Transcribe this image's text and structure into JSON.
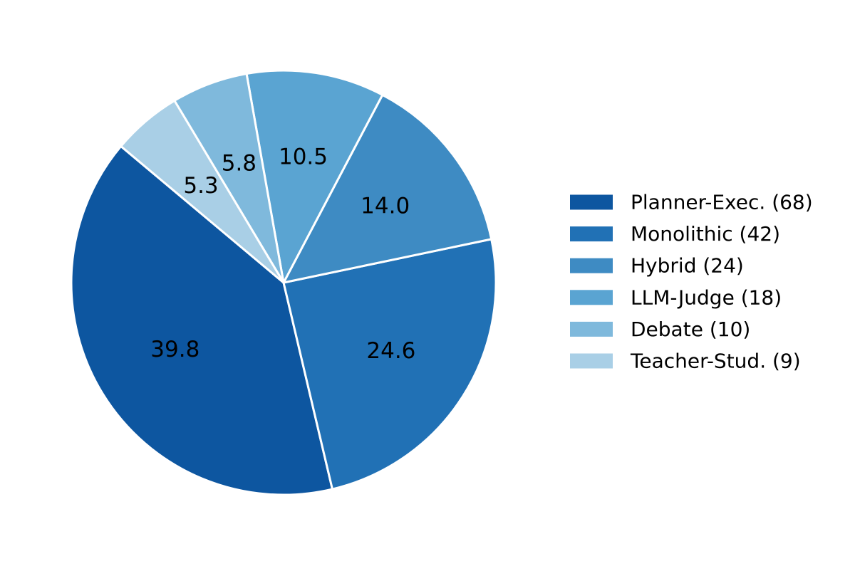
{
  "chart_data": {
    "type": "pie",
    "title": "",
    "slices": [
      {
        "legend": "Planner-Exec. (68)",
        "value": 39.8,
        "label": "39.8",
        "color": "#0d56a0"
      },
      {
        "legend": "Monolithic (42)",
        "value": 24.6,
        "label": "24.6",
        "color": "#2171b5"
      },
      {
        "legend": "Hybrid (24)",
        "value": 14.0,
        "label": "14.0",
        "color": "#3e8bc3"
      },
      {
        "legend": "LLM-Judge (18)",
        "value": 10.5,
        "label": "10.5",
        "color": "#5aa4d2"
      },
      {
        "legend": "Debate (10)",
        "value": 5.8,
        "label": "5.8",
        "color": "#7fb9dc"
      },
      {
        "legend": "Teacher-Stud. (9)",
        "value": 5.3,
        "label": "5.3",
        "color": "#a9cfe6"
      }
    ],
    "slice_edge_color": "#ffffff",
    "legend_position": "right",
    "value_format": "percent-one-decimal"
  }
}
